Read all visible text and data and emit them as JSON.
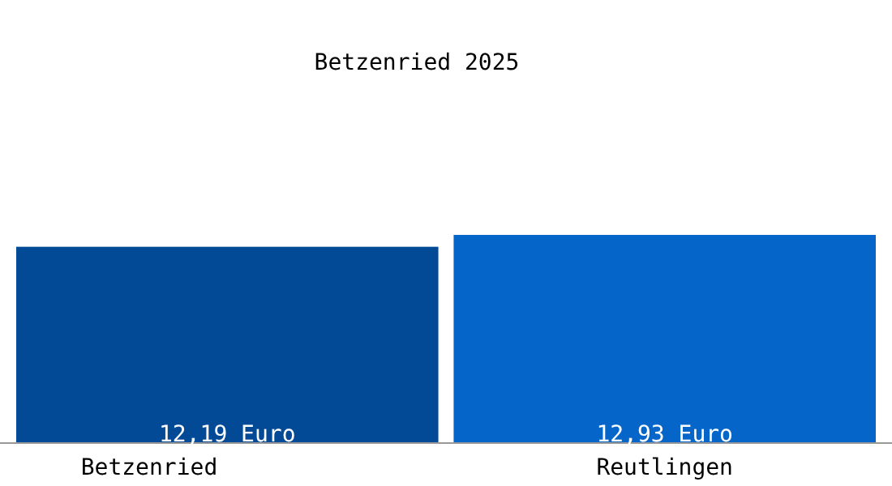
{
  "chart_data": {
    "type": "bar",
    "title": "Betzenried 2025",
    "categories": [
      "Betzenried",
      "Reutlingen"
    ],
    "values": [
      12.19,
      12.93
    ],
    "colors": [
      "#034a96",
      "#0565c8"
    ],
    "value_labels": [
      "12,19 Euro",
      "12,93 Euro"
    ]
  }
}
